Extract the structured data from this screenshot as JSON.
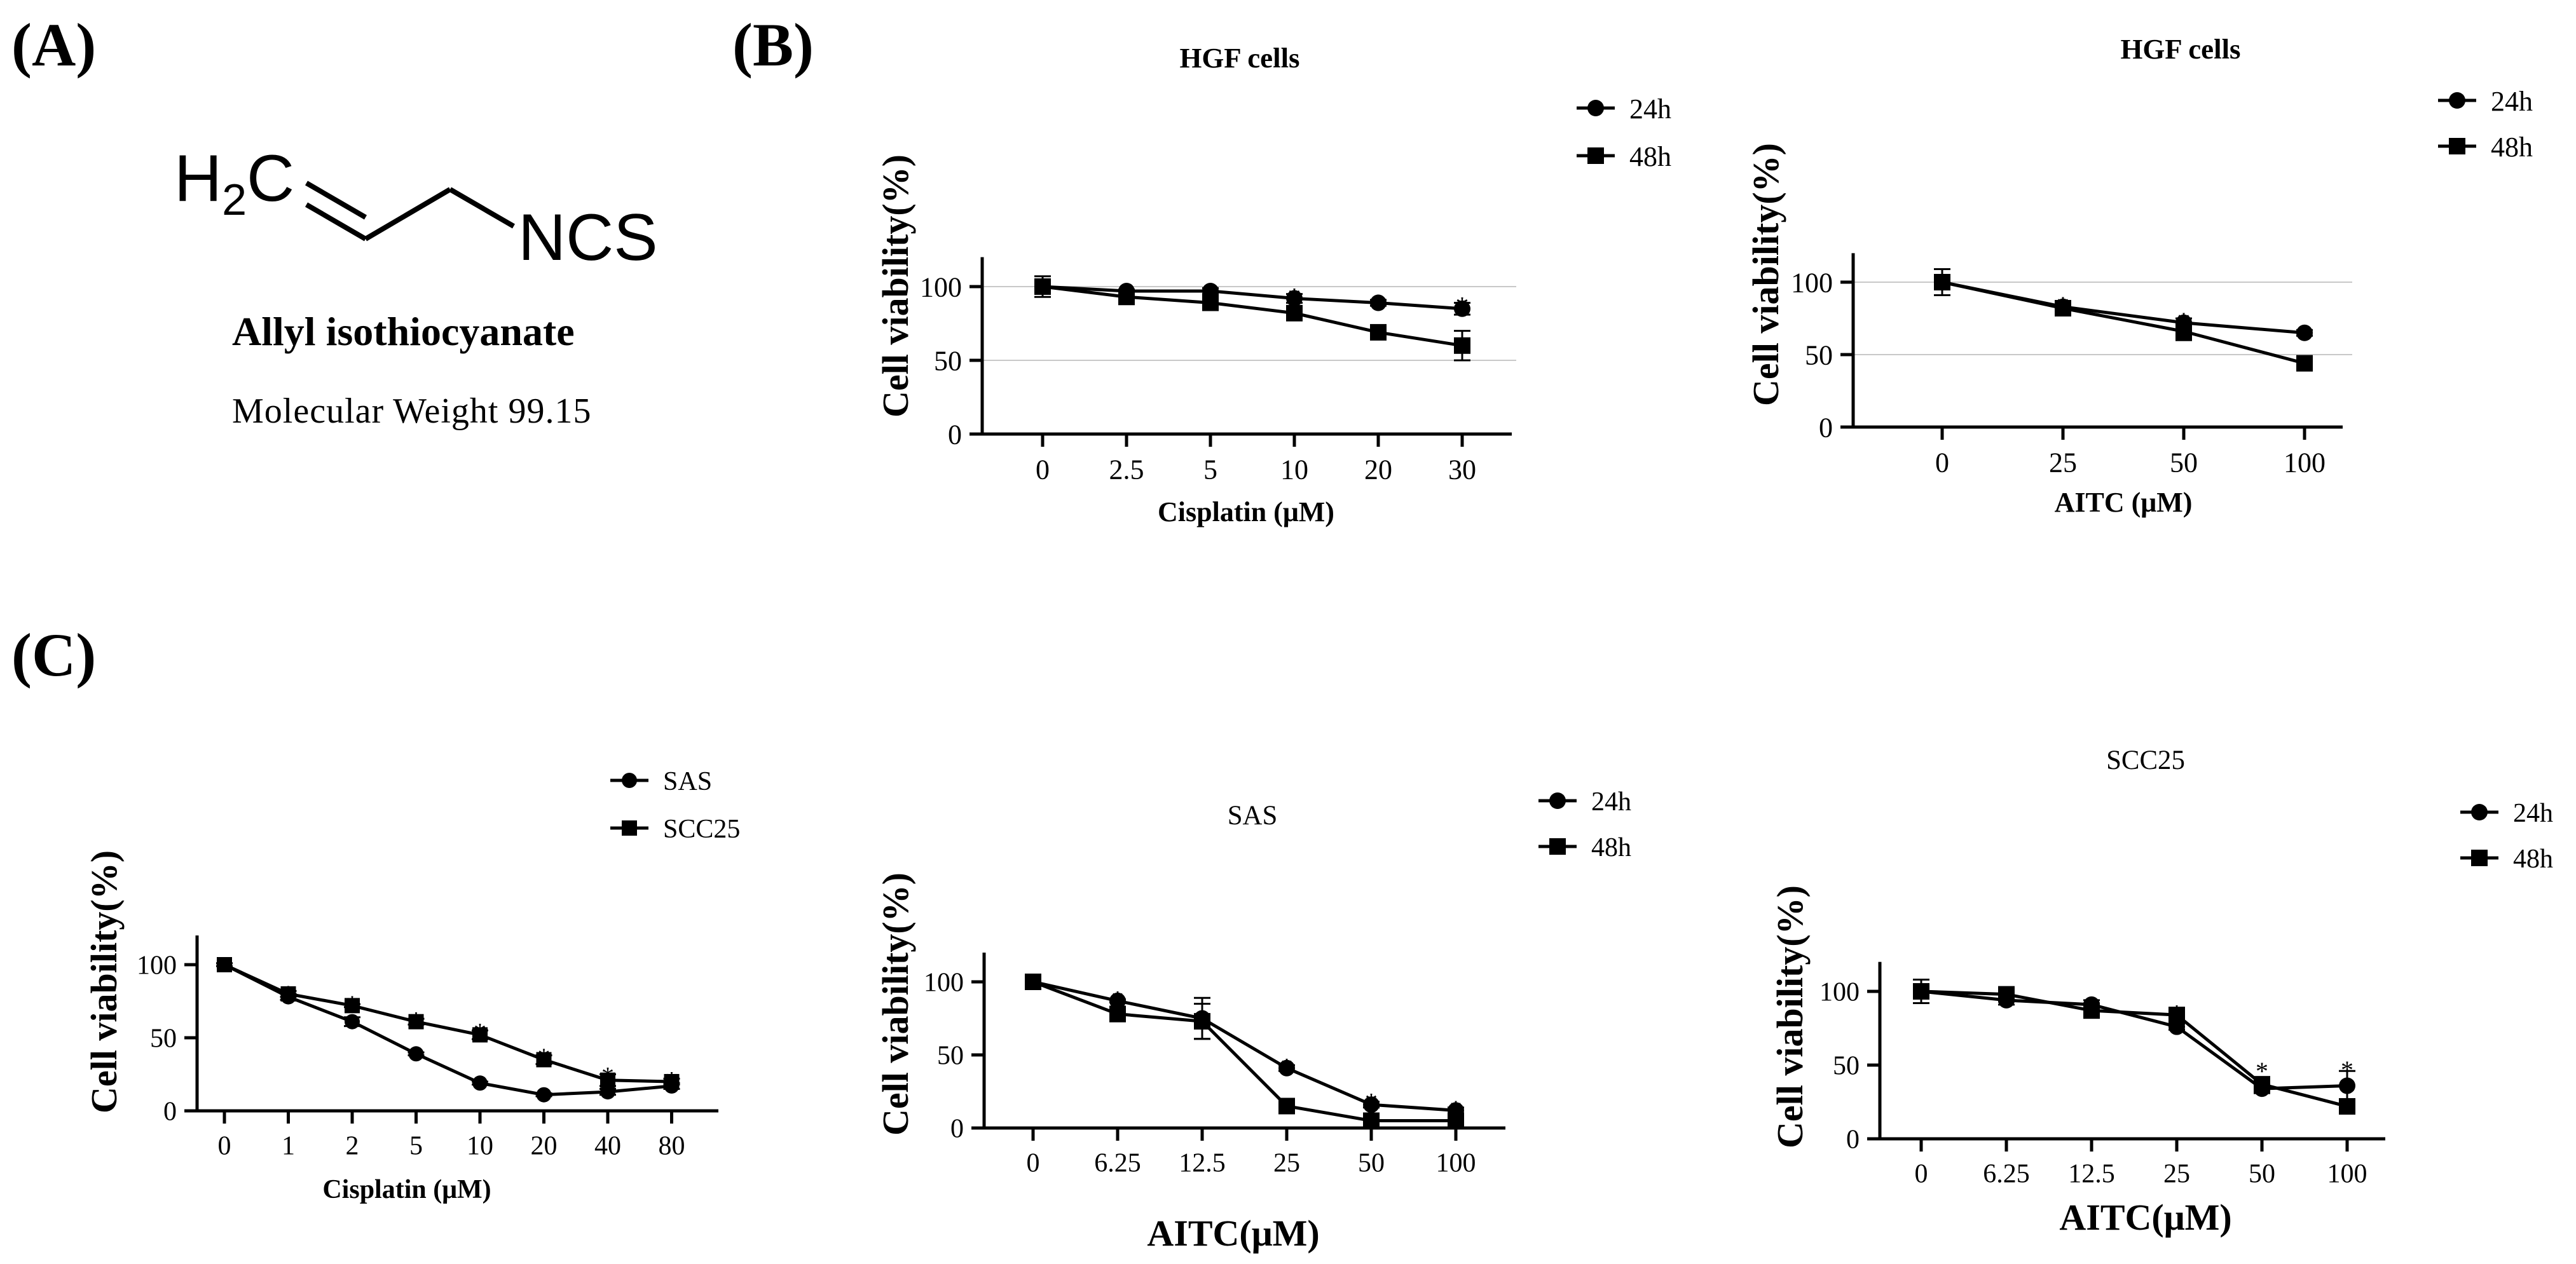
{
  "panel_labels": {
    "a": "(A)",
    "b": "(B)",
    "c": "(C)"
  },
  "compound": {
    "formula_left": "H",
    "formula_sub": "2",
    "formula_c": "C",
    "formula_right": "NCS",
    "name": "Allyl isothiocyanate",
    "molecular_weight": "Molecular Weight 99.15"
  },
  "chart_data": [
    {
      "id": "b1",
      "type": "line",
      "title": "HGF cells",
      "xlabel": "Cisplatin (μM)",
      "ylabel": "Cell viability(%)",
      "categories": [
        "0",
        "2.5",
        "5",
        "10",
        "20",
        "30"
      ],
      "ylim": [
        0,
        120
      ],
      "yticks": [
        "0",
        "50",
        "100"
      ],
      "grid": [
        50,
        100
      ],
      "legend_position": "top-right",
      "series": [
        {
          "name": "24h",
          "marker": "circle",
          "values": [
            100,
            97,
            97,
            92,
            89,
            85
          ],
          "errors": [
            4,
            1,
            2,
            3,
            2,
            4
          ]
        },
        {
          "name": "48h",
          "marker": "square",
          "values": [
            100,
            93,
            89,
            82,
            69,
            60
          ],
          "errors": [
            7,
            2,
            4,
            2,
            1,
            10
          ]
        }
      ],
      "annotations": [
        {
          "label": "*",
          "index": 3,
          "value": 97
        },
        {
          "label": "*",
          "index": 4,
          "value": 93
        },
        {
          "label": "*",
          "index": 5,
          "value": 91
        }
      ]
    },
    {
      "id": "b2",
      "type": "line",
      "title": "HGF cells",
      "xlabel": "AITC (μM)",
      "ylabel": "Cell viability(%)",
      "categories": [
        "0",
        "25",
        "50",
        "100"
      ],
      "ylim": [
        0,
        120
      ],
      "yticks": [
        "0",
        "50",
        "100"
      ],
      "grid": [
        50,
        100
      ],
      "legend_position": "top-right",
      "series": [
        {
          "name": "24h",
          "marker": "circle",
          "values": [
            100,
            83,
            72,
            65
          ],
          "errors": [
            9,
            4,
            3,
            2
          ]
        },
        {
          "name": "48h",
          "marker": "square",
          "values": [
            100,
            82,
            66,
            44
          ],
          "errors": [
            9,
            2,
            6,
            4
          ]
        }
      ],
      "annotations": [
        {
          "label": "*",
          "index": 1,
          "value": 88
        },
        {
          "label": "*",
          "index": 2,
          "value": 77
        },
        {
          "label": "*",
          "index": 3,
          "value": 68
        }
      ]
    },
    {
      "id": "c1",
      "type": "line",
      "title": "",
      "xlabel": "Cisplatin (μM)",
      "ylabel": "Cell viability(%)",
      "categories": [
        "0",
        "1",
        "2",
        "5",
        "10",
        "20",
        "40",
        "80"
      ],
      "ylim": [
        0,
        120
      ],
      "yticks": [
        "0",
        "50",
        "100"
      ],
      "grid": [],
      "legend_position": "top-right",
      "series": [
        {
          "name": "SAS",
          "marker": "circle",
          "values": [
            100,
            78,
            61,
            39,
            19,
            11,
            13,
            17
          ],
          "errors": [
            1,
            2,
            3,
            1,
            1,
            1,
            2,
            2
          ]
        },
        {
          "name": "SCC25",
          "marker": "square",
          "values": [
            100,
            80,
            72,
            61,
            52,
            35,
            21,
            20
          ],
          "errors": [
            1,
            2,
            1,
            2,
            3,
            3,
            4,
            2
          ]
        }
      ],
      "annotations": [
        {
          "label": "*",
          "index": 1,
          "value": 84
        },
        {
          "label": "*",
          "index": 2,
          "value": 77
        },
        {
          "label": "*",
          "index": 3,
          "value": 66
        },
        {
          "label": "*",
          "index": 4,
          "value": 58
        },
        {
          "label": "*",
          "index": 5,
          "value": 41
        },
        {
          "label": "*",
          "index": 6,
          "value": 28
        },
        {
          "label": "*",
          "index": 7,
          "value": 25
        }
      ]
    },
    {
      "id": "c2",
      "type": "line",
      "title": "SAS",
      "xlabel": "AITC(μM)",
      "ylabel": "Cell viability(%)",
      "categories": [
        "0",
        "6.25",
        "12.5",
        "25",
        "50",
        "100"
      ],
      "ylim": [
        0,
        120
      ],
      "yticks": [
        "0",
        "50",
        "100"
      ],
      "grid": [],
      "legend_position": "top-right",
      "series": [
        {
          "name": "24h",
          "marker": "circle",
          "values": [
            100,
            87,
            75,
            41,
            16,
            12
          ],
          "errors": [
            1,
            1,
            14,
            2,
            2,
            2
          ]
        },
        {
          "name": "48h",
          "marker": "square",
          "values": [
            100,
            78,
            73,
            15,
            5,
            5
          ],
          "errors": [
            1,
            5,
            12,
            5,
            1,
            1
          ]
        }
      ],
      "annotations": [
        {
          "label": "*",
          "index": 1,
          "value": 92
        },
        {
          "label": "*",
          "index": 2,
          "value": 78
        },
        {
          "label": "*",
          "index": 3,
          "value": 46
        },
        {
          "label": "*",
          "index": 4,
          "value": 22
        },
        {
          "label": "*",
          "index": 5,
          "value": 17
        }
      ]
    },
    {
      "id": "c3",
      "type": "line",
      "title": "SCC25",
      "xlabel": "AITC(μM)",
      "ylabel": "Cell viability(%)",
      "categories": [
        "0",
        "6.25",
        "12.5",
        "25",
        "50",
        "100"
      ],
      "ylim": [
        0,
        120
      ],
      "yticks": [
        "0",
        "50",
        "100"
      ],
      "grid": [],
      "legend_position": "top-right",
      "series": [
        {
          "name": "24h",
          "marker": "circle",
          "values": [
            100,
            94,
            91,
            76,
            34,
            36
          ],
          "errors": [
            8,
            3,
            3,
            2,
            3,
            10
          ]
        },
        {
          "name": "48h",
          "marker": "square",
          "values": [
            100,
            98,
            87,
            84,
            37,
            22
          ],
          "errors": [
            1,
            1,
            3,
            3,
            2,
            1
          ]
        }
      ],
      "annotations": [
        {
          "label": "*",
          "index": 3,
          "value": 89
        },
        {
          "label": "*",
          "index": 4,
          "value": 50
        },
        {
          "label": "*",
          "index": 5,
          "value": 51
        }
      ]
    }
  ]
}
